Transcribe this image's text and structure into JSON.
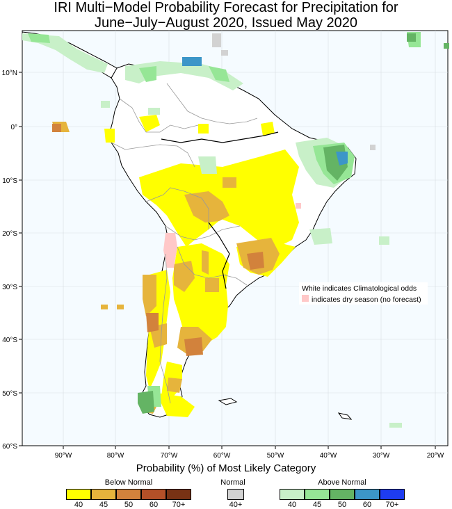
{
  "title_line1": "IRI Multi−Model Probability Forecast for Precipitation for",
  "title_line2": "June−July−August 2020, Issued May 2020",
  "lat_labels": [
    "10°N",
    "0°",
    "10°S",
    "20°S",
    "30°S",
    "40°S",
    "50°S",
    "60°S"
  ],
  "lon_labels": [
    "90°W",
    "80°W",
    "70°W",
    "60°W",
    "50°W",
    "40°W",
    "30°W",
    "20°W"
  ],
  "legend_note_1": "White indicates Climatological odds",
  "legend_note_2": "indicates dry season (no forecast)",
  "colorbar_title": "Probability (%) of Most Likely Category",
  "below_normal": {
    "label": "Below Normal",
    "ticks": [
      "40",
      "45",
      "50",
      "60",
      "70+"
    ],
    "colors": [
      "#ffff00",
      "#e6b43c",
      "#d2823c",
      "#b45028",
      "#783214"
    ]
  },
  "normal": {
    "label": "Normal",
    "ticks": [
      "40+"
    ],
    "colors": [
      "#d2d2d2"
    ]
  },
  "above_normal": {
    "label": "Above Normal",
    "ticks": [
      "40",
      "45",
      "50",
      "60",
      "70+"
    ],
    "colors": [
      "#c8f0c8",
      "#96e696",
      "#64b464",
      "#3c96c8",
      "#1e3cf0"
    ]
  },
  "colors": {
    "ocean": "#f5fbff",
    "dry_season": "#ffc8c8",
    "coast": "#000000",
    "border": "#999999"
  }
}
